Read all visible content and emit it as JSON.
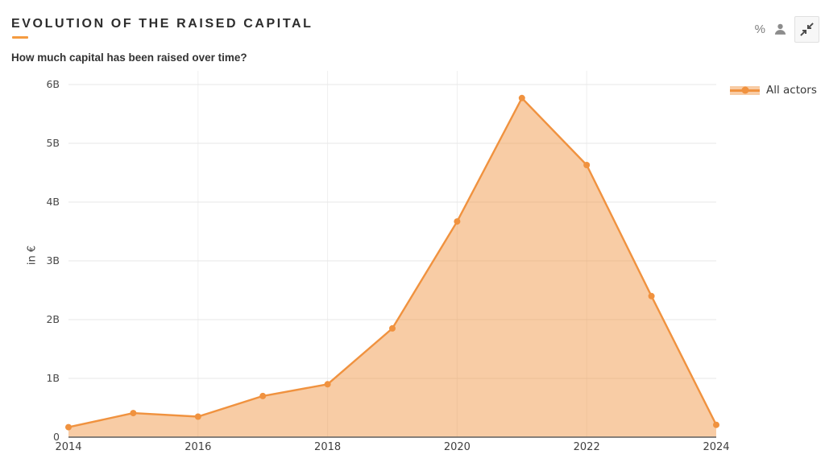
{
  "header": {
    "title": "EVOLUTION OF THE RAISED CAPITAL",
    "subtitle": "How much capital has been raised over time?",
    "percent_icon_glyph": "%"
  },
  "colors": {
    "accent": "#f59b40",
    "icon_gray": "#8c8c8c"
  },
  "chart_data": {
    "type": "area",
    "title": "EVOLUTION OF THE RAISED CAPITAL",
    "subtitle": "How much capital has been raised over time?",
    "ylabel": "in €",
    "x": [
      2014,
      2015,
      2016,
      2017,
      2018,
      2019,
      2020,
      2021,
      2022,
      2023,
      2024
    ],
    "series": [
      {
        "name": "All actors",
        "values": [
          0.17,
          0.41,
          0.35,
          0.7,
          0.9,
          1.85,
          3.67,
          5.77,
          4.63,
          2.4,
          0.21
        ]
      }
    ],
    "ylim": [
      0,
      6
    ],
    "ytick_values": [
      0,
      1,
      2,
      3,
      4,
      5,
      6
    ],
    "ytick_labels": [
      "0",
      "1B",
      "2B",
      "3B",
      "4B",
      "5B",
      "6B"
    ],
    "xtick_values": [
      2014,
      2016,
      2018,
      2020,
      2022,
      2024
    ],
    "xtick_labels": [
      "2014",
      "2016",
      "2018",
      "2020",
      "2022",
      "2024"
    ],
    "grid": true,
    "legend_position": "top-right",
    "line_color": "#f0923f",
    "fill_color": "rgba(240,146,63,0.47)",
    "grid_color_h": "#e7e7e7",
    "grid_color_v": "#efefef",
    "axis_color": "#5f5f5f"
  }
}
